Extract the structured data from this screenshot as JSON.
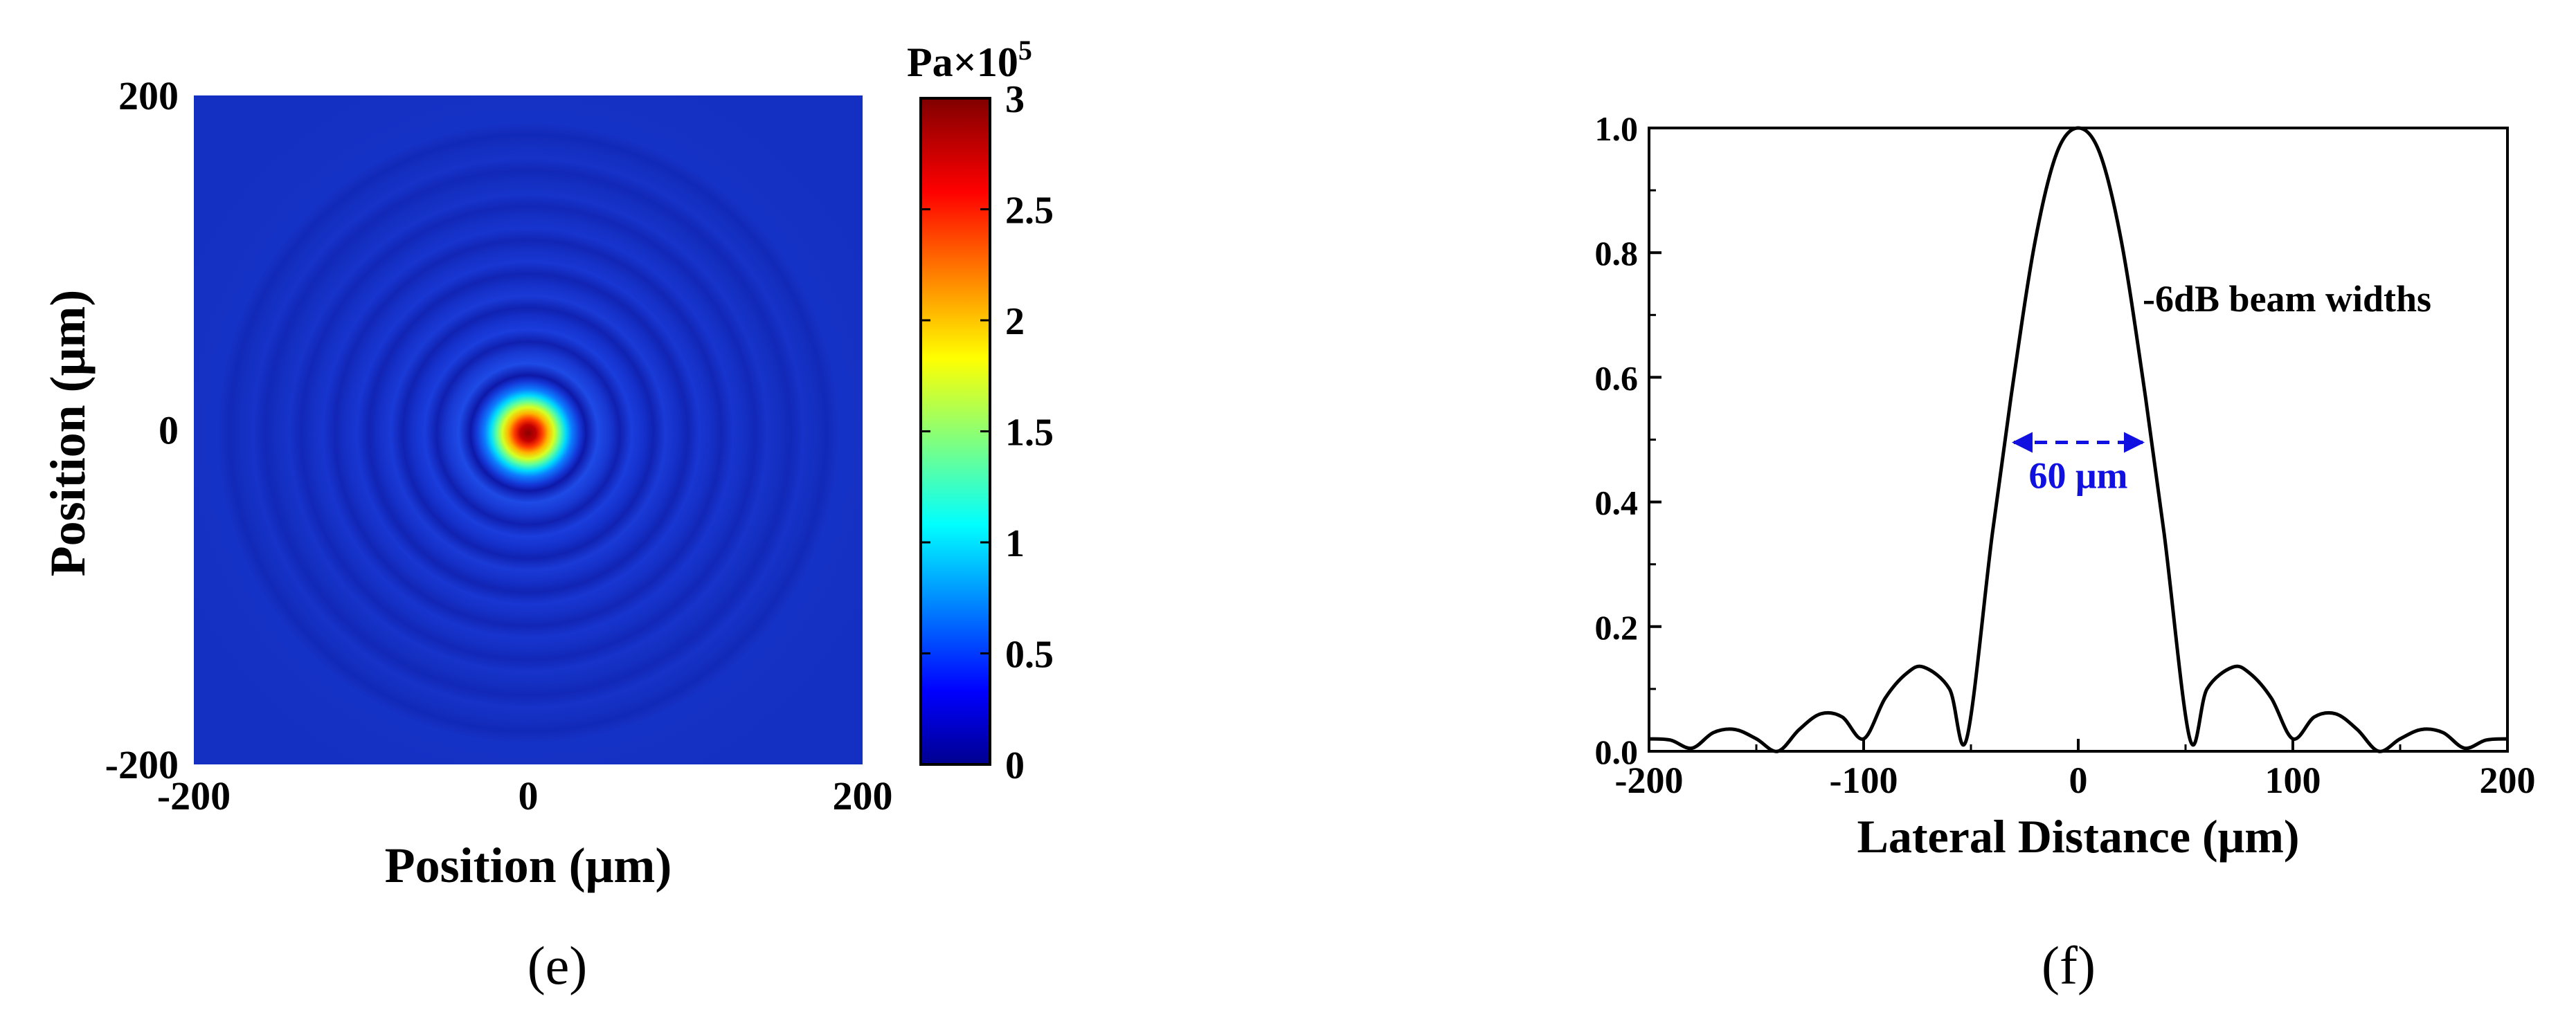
{
  "panel_labels": {
    "left": "(e)",
    "right": "(f)"
  },
  "chart_data": [
    {
      "type": "heatmap",
      "panel": "(e)",
      "xlabel": "Position (μm)",
      "ylabel": "Position (μm)",
      "xlim": [
        -200,
        200
      ],
      "ylim": [
        -200,
        200
      ],
      "x_ticks": [
        -200,
        0,
        200
      ],
      "y_ticks": [
        200,
        0,
        -200
      ],
      "x_tick_labels": [
        "-200",
        "0",
        "200"
      ],
      "y_tick_labels": [
        "200",
        "0",
        "-200"
      ],
      "colorbar": {
        "title_base": "Pa×10",
        "title_exp": "5",
        "range": [
          0,
          3
        ],
        "colormap": "jet",
        "ticks": [
          0,
          0.5,
          1,
          1.5,
          2,
          2.5,
          3
        ],
        "tick_labels": [
          "0",
          "0.5",
          "1",
          "1.5",
          "2",
          "2.5",
          "3"
        ]
      },
      "description_values": {
        "peak_pressure": 3.0,
        "peak_position": [
          0,
          0
        ],
        "pattern": "radially symmetric focal spot with concentric side-lobe rings"
      }
    },
    {
      "type": "line",
      "panel": "(f)",
      "xlabel": "Lateral Distance (μm)",
      "ylabel": "",
      "xlim": [
        -200,
        200
      ],
      "ylim": [
        0,
        1.0
      ],
      "x_ticks": [
        -200,
        -100,
        0,
        100,
        200
      ],
      "x_tick_labels": [
        "-200",
        "-100",
        "0",
        "100",
        "200"
      ],
      "y_ticks": [
        0,
        0.2,
        0.4,
        0.6,
        0.8,
        1.0
      ],
      "y_tick_labels": [
        "0.0",
        "0.2",
        "0.4",
        "0.6",
        "0.8",
        "1.0"
      ],
      "series": [
        {
          "x": [
            -200,
            -190,
            -180,
            -170,
            -160,
            -150,
            -140,
            -130,
            -120,
            -110,
            -100,
            -90,
            -80,
            -72,
            -60,
            -52,
            -40,
            -30,
            -20,
            -10,
            0,
            10,
            20,
            30,
            40,
            52,
            60,
            72,
            80,
            90,
            100,
            110,
            120,
            130,
            140,
            150,
            160,
            170,
            180,
            190,
            200
          ],
          "y": [
            0.02,
            0.018,
            0.005,
            0.03,
            0.035,
            0.02,
            0.0,
            0.035,
            0.06,
            0.055,
            0.02,
            0.085,
            0.125,
            0.135,
            0.1,
            0.02,
            0.35,
            0.6,
            0.82,
            0.96,
            1.0,
            0.96,
            0.82,
            0.6,
            0.35,
            0.02,
            0.1,
            0.135,
            0.125,
            0.085,
            0.02,
            0.055,
            0.06,
            0.035,
            0.0,
            0.02,
            0.035,
            0.03,
            0.005,
            0.018,
            0.02
          ]
        }
      ],
      "annotations": {
        "beam_width_text": "-6dB beam widths",
        "width_label": "60 μm",
        "width_arrow_x": [
          -30,
          30
        ],
        "width_arrow_y": 0.5
      },
      "colors": {
        "curve": "#000000",
        "annotation": "#1010e0"
      }
    }
  ]
}
